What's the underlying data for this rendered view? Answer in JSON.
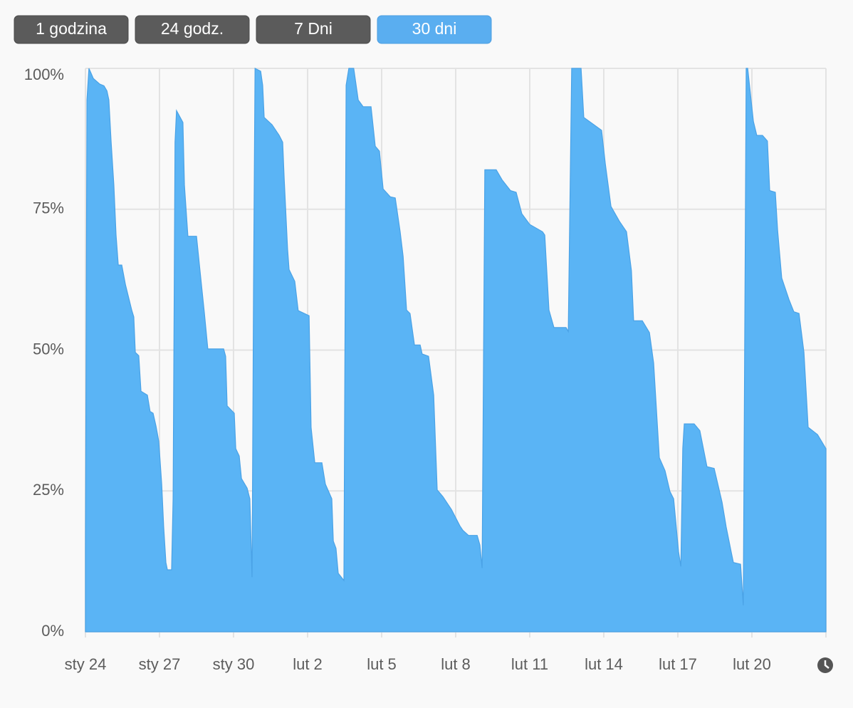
{
  "tabs": [
    {
      "label": "1 godzina",
      "active": false
    },
    {
      "label": "24 godz.",
      "active": false
    },
    {
      "label": "7 Dni",
      "active": false
    },
    {
      "label": "30 dni",
      "active": true
    }
  ],
  "chart_data": {
    "type": "area",
    "color": "#5ab4f5",
    "grid": true,
    "xlim": [
      0,
      30
    ],
    "ylim": [
      0,
      100
    ],
    "xticks": [
      {
        "value": 0,
        "label": "sty 24"
      },
      {
        "value": 3,
        "label": "sty 27"
      },
      {
        "value": 6,
        "label": "sty 30"
      },
      {
        "value": 9,
        "label": "lut 2"
      },
      {
        "value": 12,
        "label": "lut 5"
      },
      {
        "value": 15,
        "label": "lut 8"
      },
      {
        "value": 18,
        "label": "lut 11"
      },
      {
        "value": 21,
        "label": "lut 14"
      },
      {
        "value": 24,
        "label": "lut 17"
      },
      {
        "value": 27,
        "label": "lut 20"
      }
    ],
    "yticks": [
      {
        "value": 0,
        "label": "0%"
      },
      {
        "value": 25,
        "label": "25%"
      },
      {
        "value": 50,
        "label": "50%"
      },
      {
        "value": 75,
        "label": "75%"
      },
      {
        "value": 100,
        "label": "100%"
      }
    ],
    "x": [
      0,
      0.06,
      0.14,
      0.32,
      0.58,
      0.75,
      0.87,
      0.95,
      1.04,
      1.15,
      1.24,
      1.33,
      1.47,
      1.62,
      1.88,
      1.96,
      2.02,
      2.16,
      2.25,
      2.51,
      2.62,
      2.74,
      2.86,
      2.97,
      3.09,
      3.17,
      3.26,
      3.32,
      3.49,
      3.55,
      3.63,
      3.69,
      3.95,
      4.01,
      4.15,
      4.5,
      4.64,
      4.82,
      4.96,
      5.6,
      5.68,
      5.74,
      6.03,
      6.09,
      6.23,
      6.32,
      6.55,
      6.66,
      6.75,
      6.81,
      6.87,
      7.1,
      7.18,
      7.24,
      7.56,
      7.85,
      7.99,
      8.05,
      8.19,
      8.25,
      8.48,
      8.62,
      9.06,
      9.14,
      9.29,
      9.58,
      9.72,
      9.98,
      10.04,
      10.15,
      10.24,
      10.47,
      10.56,
      10.67,
      10.87,
      11.05,
      11.25,
      11.57,
      11.74,
      11.91,
      12.06,
      12.35,
      12.55,
      12.75,
      12.87,
      13.01,
      13.15,
      13.33,
      13.56,
      13.64,
      13.9,
      14.11,
      14.25,
      14.48,
      14.83,
      15.17,
      15.29,
      15.52,
      15.87,
      15.98,
      16.07,
      16.18,
      16.64,
      16.88,
      17.22,
      17.45,
      17.68,
      18.0,
      18.52,
      18.61,
      18.78,
      18.98,
      19.47,
      19.56,
      19.7,
      20.08,
      20.19,
      20.6,
      20.91,
      21.06,
      21.29,
      21.63,
      21.92,
      22.12,
      22.21,
      22.56,
      22.85,
      23.02,
      23.25,
      23.48,
      23.68,
      23.83,
      24.03,
      24.12,
      24.2,
      24.26,
      24.66,
      24.89,
      25.18,
      25.47,
      25.79,
      25.96,
      26.16,
      26.25,
      26.54,
      26.65,
      26.77,
      26.83,
      27.06,
      27.2,
      27.43,
      27.63,
      27.72,
      27.95,
      28.04,
      28.21,
      28.5,
      28.7,
      28.91,
      29.11,
      29.28,
      29.66,
      30.0
    ],
    "values": [
      14.8,
      94.4,
      100,
      98.2,
      97.2,
      96.9,
      96.0,
      94.4,
      86.9,
      79.3,
      70.4,
      65.1,
      65.1,
      61.6,
      57.0,
      55.9,
      49.6,
      49.0,
      42.7,
      42.0,
      39.1,
      38.8,
      36.5,
      33.8,
      26.2,
      18.6,
      12.3,
      11.0,
      11.0,
      23.6,
      86.9,
      92.5,
      90.4,
      79.3,
      70.2,
      70.2,
      64.1,
      56.5,
      50.2,
      50.2,
      48.9,
      40.1,
      38.8,
      32.5,
      31.2,
      27.2,
      25.5,
      23.6,
      9.7,
      61.6,
      100,
      99.5,
      97.0,
      91.3,
      90.0,
      88.1,
      86.9,
      80.5,
      67.9,
      64.3,
      62.2,
      57.0,
      56.1,
      36.3,
      30.0,
      30.0,
      26.2,
      23.6,
      16.1,
      14.8,
      10.4,
      9.1,
      97.0,
      100,
      100,
      94.4,
      93.2,
      93.2,
      86.2,
      85.3,
      78.6,
      77.2,
      77.0,
      71.0,
      66.6,
      57.1,
      56.5,
      50.9,
      50.9,
      49.3,
      48.9,
      42.0,
      25.2,
      24.0,
      21.7,
      18.8,
      18.0,
      17.1,
      17.1,
      15.4,
      11.3,
      82.0,
      82.0,
      80.2,
      78.3,
      78.0,
      74.2,
      72.3,
      71.0,
      70.4,
      57.1,
      54.0,
      54.0,
      53.3,
      100,
      100,
      91.3,
      90.0,
      89.0,
      83.1,
      75.5,
      72.9,
      71.0,
      64.1,
      55.2,
      55.2,
      53.1,
      47.7,
      30.9,
      28.6,
      24.9,
      23.6,
      14.2,
      11.6,
      32.5,
      36.9,
      36.9,
      35.7,
      29.3,
      29.0,
      23.0,
      18.6,
      14.2,
      12.3,
      12.0,
      4.7,
      100,
      100,
      90.6,
      88.1,
      88.1,
      87.1,
      78.3,
      78.0,
      71.3,
      62.8,
      59.0,
      56.8,
      56.5,
      49.6,
      36.3,
      35.0,
      32.5
    ]
  }
}
